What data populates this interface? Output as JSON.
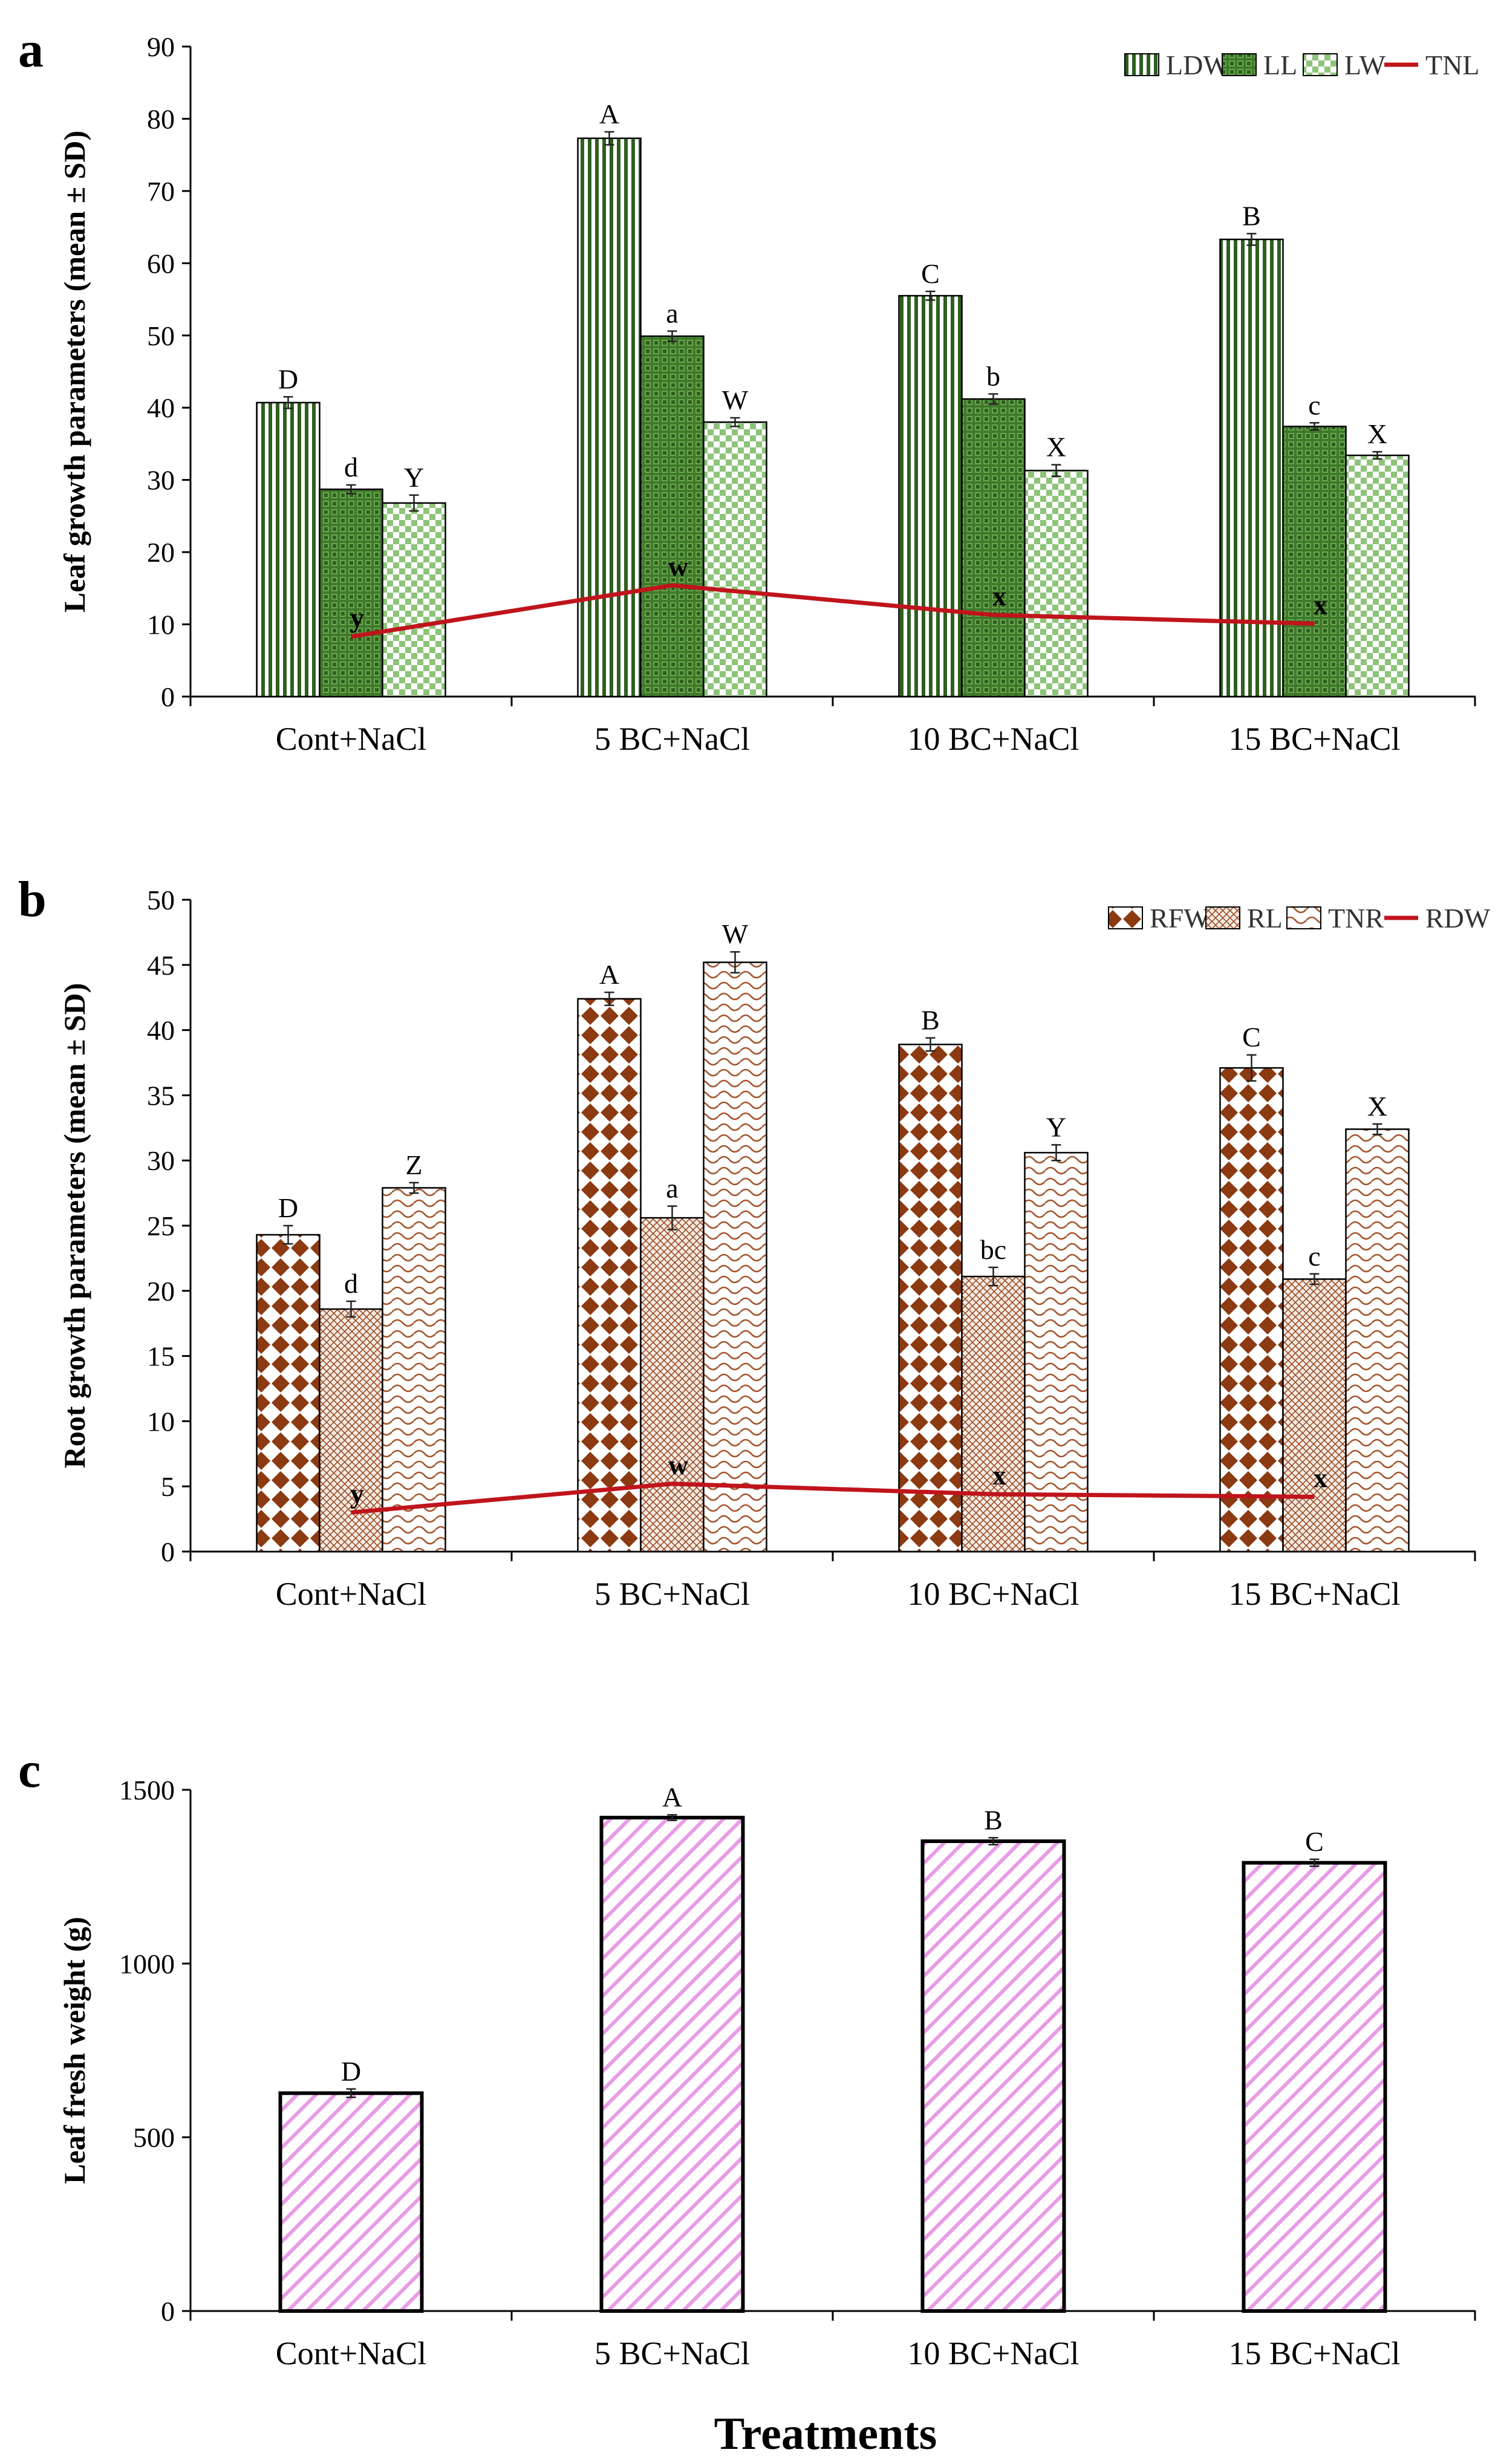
{
  "colors": {
    "green_dark": "#2f5f1f",
    "green_mid": "#4f8a32",
    "green_light": "#8dc47a",
    "brown": "#8b3a12",
    "pink": "#e89ce6",
    "red_line": "#c0141c",
    "axis": "#000000"
  },
  "figure": {
    "xtitle": "Treatments"
  },
  "chart_data": [
    {
      "panel": "a",
      "type": "bar",
      "ylabel": "Leaf growth parameters (mean ± SD)",
      "ylim": [
        0,
        90
      ],
      "yticks": [
        0,
        10,
        20,
        30,
        40,
        50,
        60,
        70,
        80,
        90
      ],
      "categories": [
        "Cont+NaCl",
        "5 BC+NaCl",
        "10 BC+NaCl",
        "15 BC+NaCl"
      ],
      "series": [
        {
          "name": "LDW",
          "pattern": "pa-vstripe",
          "values": [
            40.7,
            77.3,
            55.5,
            63.3
          ],
          "errors": [
            0.8,
            0.9,
            0.6,
            0.8
          ],
          "labels": [
            "D",
            "A",
            "C",
            "B"
          ]
        },
        {
          "name": "LL",
          "pattern": "pa-grid",
          "values": [
            28.7,
            49.9,
            41.2,
            37.4
          ],
          "errors": [
            0.6,
            0.7,
            0.7,
            0.5
          ],
          "labels": [
            "d",
            "a",
            "b",
            "c"
          ]
        },
        {
          "name": "LW",
          "pattern": "pa-check",
          "values": [
            26.8,
            38.0,
            31.3,
            33.4
          ],
          "errors": [
            1.1,
            0.6,
            0.8,
            0.5
          ],
          "labels": [
            "Y",
            "W",
            "X",
            "X"
          ]
        }
      ],
      "line": {
        "name": "TNL",
        "values": [
          8.3,
          15.4,
          11.3,
          10.1
        ],
        "labels": [
          "y",
          "w",
          "x",
          "x"
        ]
      },
      "legend": "top-right"
    },
    {
      "panel": "b",
      "type": "bar",
      "ylabel": "Root growth parameters (mean ± SD)",
      "ylim": [
        0,
        50
      ],
      "yticks": [
        0,
        5,
        10,
        15,
        20,
        25,
        30,
        35,
        40,
        45,
        50
      ],
      "categories": [
        "Cont+NaCl",
        "5 BC+NaCl",
        "10 BC+NaCl",
        "15 BC+NaCl"
      ],
      "series": [
        {
          "name": "RFW",
          "pattern": "pb-diamond",
          "values": [
            24.3,
            42.4,
            38.9,
            37.1
          ],
          "errors": [
            0.7,
            0.5,
            0.5,
            1.0
          ],
          "labels": [
            "D",
            "A",
            "B",
            "C"
          ]
        },
        {
          "name": "RL",
          "pattern": "pb-cross",
          "values": [
            18.6,
            25.6,
            21.1,
            20.9
          ],
          "errors": [
            0.6,
            0.9,
            0.7,
            0.4
          ],
          "labels": [
            "d",
            "a",
            "bc",
            "c"
          ]
        },
        {
          "name": "TNR",
          "pattern": "pb-wave",
          "values": [
            27.9,
            45.2,
            30.6,
            32.4
          ],
          "errors": [
            0.4,
            0.8,
            0.6,
            0.4
          ],
          "labels": [
            "Z",
            "W",
            "Y",
            "X"
          ]
        }
      ],
      "line": {
        "name": "RDW",
        "values": [
          3.0,
          5.2,
          4.4,
          4.2
        ],
        "labels": [
          "y",
          "w",
          "x",
          "x"
        ]
      },
      "legend": "top-right"
    },
    {
      "panel": "c",
      "type": "bar",
      "ylabel": "Leaf fresh weight (g)",
      "ylim": [
        0,
        1500
      ],
      "yticks": [
        0,
        500,
        1000,
        1500
      ],
      "categories": [
        "Cont+NaCl",
        "5 BC+NaCl",
        "10 BC+NaCl",
        "15 BC+NaCl"
      ],
      "series": [
        {
          "name": "Leaf fresh weight",
          "pattern": "pc-diag",
          "values": [
            627,
            1420,
            1352,
            1290
          ],
          "errors": [
            12,
            8,
            10,
            10
          ],
          "labels": [
            "D",
            "A",
            "B",
            "C"
          ]
        }
      ],
      "legend": "none"
    }
  ]
}
